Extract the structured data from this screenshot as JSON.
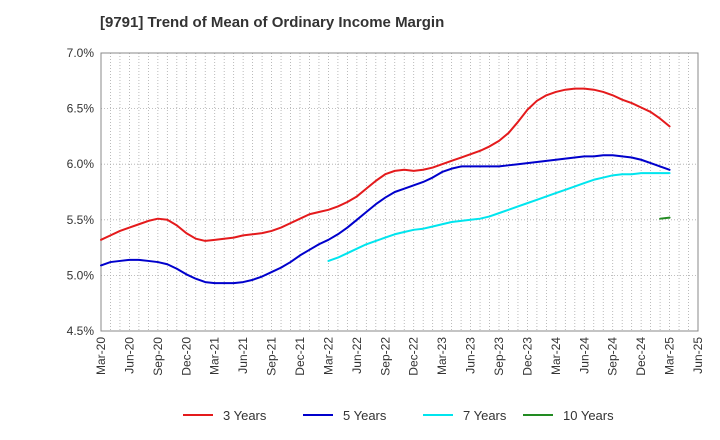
{
  "chart_data": {
    "type": "line",
    "title": "[9791]  Trend of Mean of Ordinary Income Margin",
    "xlabel": "",
    "ylabel": "",
    "y_ticks": [
      "4.5%",
      "5.0%",
      "5.5%",
      "6.0%",
      "6.5%",
      "7.0%"
    ],
    "ylim": [
      4.5,
      7.0
    ],
    "x_ticks": [
      "Mar-20",
      "Jun-20",
      "Sep-20",
      "Dec-20",
      "Mar-21",
      "Jun-21",
      "Sep-21",
      "Dec-21",
      "Mar-22",
      "Jun-22",
      "Sep-22",
      "Dec-22",
      "Mar-23",
      "Jun-23",
      "Sep-23",
      "Dec-23",
      "Mar-24",
      "Jun-24",
      "Sep-24",
      "Dec-24",
      "Mar-25",
      "Jun-25"
    ],
    "grid": true,
    "legend_position": "bottom",
    "series": [
      {
        "name": "3 Years",
        "color": "#e41a1c",
        "x": [
          "Mar-20",
          "Apr-20",
          "May-20",
          "Jun-20",
          "Jul-20",
          "Aug-20",
          "Sep-20",
          "Oct-20",
          "Nov-20",
          "Dec-20",
          "Jan-21",
          "Feb-21",
          "Mar-21",
          "Apr-21",
          "May-21",
          "Jun-21",
          "Jul-21",
          "Aug-21",
          "Sep-21",
          "Oct-21",
          "Nov-21",
          "Dec-21",
          "Jan-22",
          "Feb-22",
          "Mar-22",
          "Apr-22",
          "May-22",
          "Jun-22",
          "Jul-22",
          "Aug-22",
          "Sep-22",
          "Oct-22",
          "Nov-22",
          "Dec-22",
          "Jan-23",
          "Feb-23",
          "Mar-23",
          "Apr-23",
          "May-23",
          "Jun-23",
          "Jul-23",
          "Aug-23",
          "Sep-23",
          "Oct-23",
          "Nov-23",
          "Dec-23",
          "Jan-24",
          "Feb-24",
          "Mar-24",
          "Apr-24",
          "May-24",
          "Jun-24",
          "Jul-24",
          "Aug-24",
          "Sep-24",
          "Oct-24",
          "Nov-24",
          "Dec-24",
          "Jan-25",
          "Feb-25",
          "Mar-25"
        ],
        "values": [
          5.32,
          5.36,
          5.4,
          5.43,
          5.46,
          5.49,
          5.51,
          5.5,
          5.45,
          5.38,
          5.33,
          5.31,
          5.32,
          5.33,
          5.34,
          5.36,
          5.37,
          5.38,
          5.4,
          5.43,
          5.47,
          5.51,
          5.55,
          5.57,
          5.59,
          5.62,
          5.66,
          5.71,
          5.78,
          5.85,
          5.91,
          5.94,
          5.95,
          5.94,
          5.95,
          5.97,
          6.0,
          6.03,
          6.06,
          6.09,
          6.12,
          6.16,
          6.21,
          6.28,
          6.38,
          6.49,
          6.57,
          6.62,
          6.65,
          6.67,
          6.68,
          6.68,
          6.67,
          6.65,
          6.62,
          6.58,
          6.55,
          6.51,
          6.47,
          6.41,
          6.34
        ]
      },
      {
        "name": "5 Years",
        "color": "#0000cc",
        "x": [
          "Mar-20",
          "Apr-20",
          "May-20",
          "Jun-20",
          "Jul-20",
          "Aug-20",
          "Sep-20",
          "Oct-20",
          "Nov-20",
          "Dec-20",
          "Jan-21",
          "Feb-21",
          "Mar-21",
          "Apr-21",
          "May-21",
          "Jun-21",
          "Jul-21",
          "Aug-21",
          "Sep-21",
          "Oct-21",
          "Nov-21",
          "Dec-21",
          "Jan-22",
          "Feb-22",
          "Mar-22",
          "Apr-22",
          "May-22",
          "Jun-22",
          "Jul-22",
          "Aug-22",
          "Sep-22",
          "Oct-22",
          "Nov-22",
          "Dec-22",
          "Jan-23",
          "Feb-23",
          "Mar-23",
          "Apr-23",
          "May-23",
          "Jun-23",
          "Jul-23",
          "Aug-23",
          "Sep-23",
          "Oct-23",
          "Nov-23",
          "Dec-23",
          "Jan-24",
          "Feb-24",
          "Mar-24",
          "Apr-24",
          "May-24",
          "Jun-24",
          "Jul-24",
          "Aug-24",
          "Sep-24",
          "Oct-24",
          "Nov-24",
          "Dec-24",
          "Jan-25",
          "Feb-25",
          "Mar-25"
        ],
        "values": [
          5.09,
          5.12,
          5.13,
          5.14,
          5.14,
          5.13,
          5.12,
          5.1,
          5.06,
          5.01,
          4.97,
          4.94,
          4.93,
          4.93,
          4.93,
          4.94,
          4.96,
          4.99,
          5.03,
          5.07,
          5.12,
          5.18,
          5.23,
          5.28,
          5.32,
          5.37,
          5.43,
          5.5,
          5.57,
          5.64,
          5.7,
          5.75,
          5.78,
          5.81,
          5.84,
          5.88,
          5.93,
          5.96,
          5.98,
          5.98,
          5.98,
          5.98,
          5.98,
          5.99,
          6.0,
          6.01,
          6.02,
          6.03,
          6.04,
          6.05,
          6.06,
          6.07,
          6.07,
          6.08,
          6.08,
          6.07,
          6.06,
          6.04,
          6.01,
          5.98,
          5.95
        ]
      },
      {
        "name": "7 Years",
        "color": "#00e5ee",
        "x": [
          "Mar-22",
          "Apr-22",
          "May-22",
          "Jun-22",
          "Jul-22",
          "Aug-22",
          "Sep-22",
          "Oct-22",
          "Nov-22",
          "Dec-22",
          "Jan-23",
          "Feb-23",
          "Mar-23",
          "Apr-23",
          "May-23",
          "Jun-23",
          "Jul-23",
          "Aug-23",
          "Sep-23",
          "Oct-23",
          "Nov-23",
          "Dec-23",
          "Jan-24",
          "Feb-24",
          "Mar-24",
          "Apr-24",
          "May-24",
          "Jun-24",
          "Jul-24",
          "Aug-24",
          "Sep-24",
          "Oct-24",
          "Nov-24",
          "Dec-24",
          "Jan-25",
          "Feb-25",
          "Mar-25"
        ],
        "values": [
          5.13,
          5.16,
          5.2,
          5.24,
          5.28,
          5.31,
          5.34,
          5.37,
          5.39,
          5.41,
          5.42,
          5.44,
          5.46,
          5.48,
          5.49,
          5.5,
          5.51,
          5.53,
          5.56,
          5.59,
          5.62,
          5.65,
          5.68,
          5.71,
          5.74,
          5.77,
          5.8,
          5.83,
          5.86,
          5.88,
          5.9,
          5.91,
          5.91,
          5.92,
          5.92,
          5.92,
          5.92
        ]
      },
      {
        "name": "10 Years",
        "color": "#228b22",
        "x": [
          "Feb-25",
          "Mar-25"
        ],
        "values": [
          5.51,
          5.52
        ]
      }
    ]
  }
}
